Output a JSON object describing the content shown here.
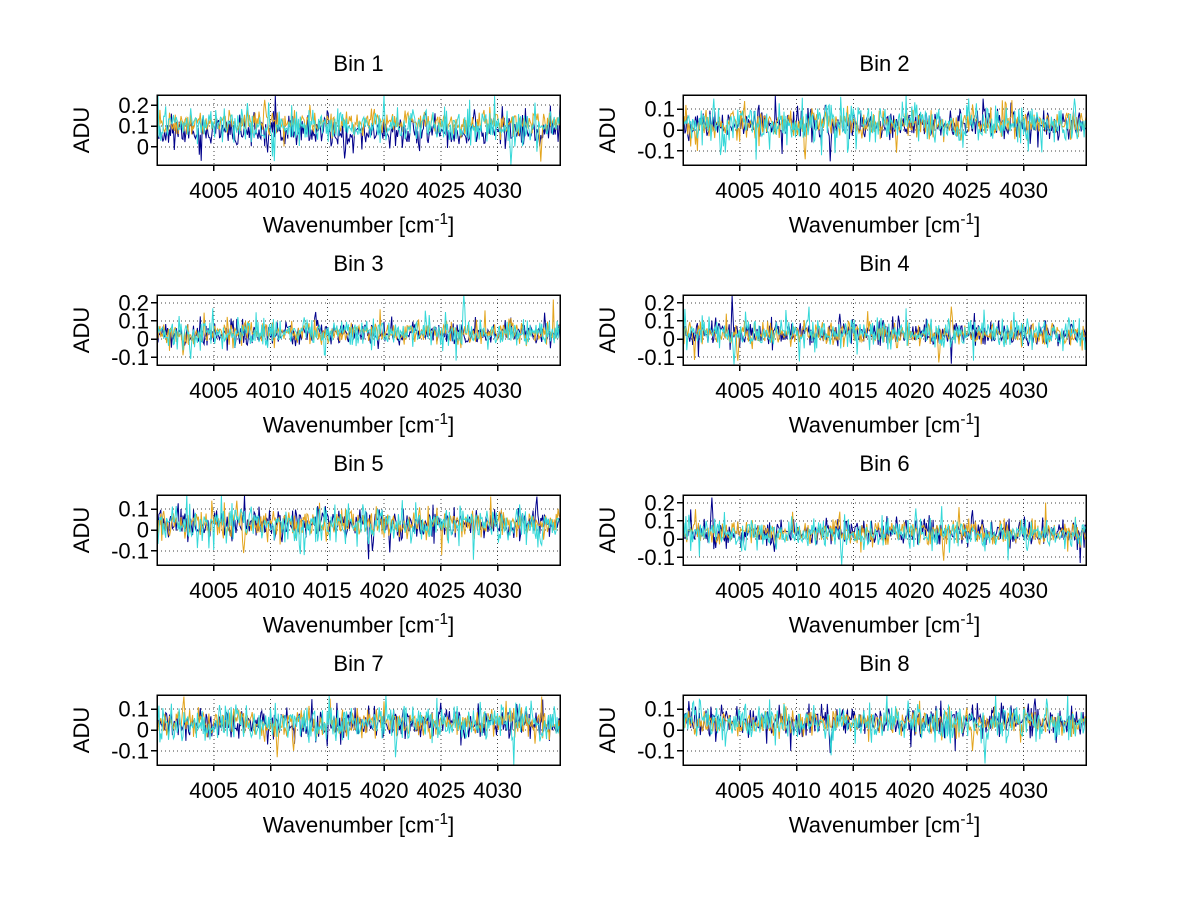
{
  "figure": {
    "background": "#ffffff",
    "rows": 4,
    "cols": 2
  },
  "labels": {
    "ylabel": "ADU",
    "xlabel_main": "Wavenumber [cm",
    "xlabel_sup": "-1",
    "xlabel_end": "]"
  },
  "axis_style": {
    "axis_color": "#000000",
    "grid_color": "#404040",
    "tick_font_px": 22,
    "grid_on": true,
    "legend": null
  },
  "chart_data": [
    {
      "type": "line",
      "title": "Bin 1",
      "ylabel": "ADU",
      "xlabel": "Wavenumber [cm-1]",
      "x_range": [
        4000,
        4035.5
      ],
      "y_range": [
        -0.086,
        0.248
      ],
      "xticks": [
        4005,
        4010,
        4015,
        4020,
        4025,
        4030
      ],
      "yticks": [
        0,
        0.1,
        0.2
      ],
      "ytick_labels": [
        "0",
        "0.1",
        "0.2"
      ],
      "n_points": 420,
      "series": [
        {
          "name": "series-dark-blue",
          "color": "#00008B",
          "mean": 0.07,
          "std": 0.036,
          "seed": 11,
          "spikes": [
            {
              "x": 4016.5,
              "y": -0.055
            },
            {
              "x": 4028,
              "y": 0.18
            }
          ]
        },
        {
          "name": "series-orange",
          "color": "#E3A51E",
          "mean": 0.115,
          "std": 0.026,
          "seed": 12,
          "spikes": [
            {
              "x": 4009.5,
              "y": 0.225
            },
            {
              "x": 4033.8,
              "y": -0.07
            },
            {
              "x": 4013.5,
              "y": 0.2
            }
          ]
        },
        {
          "name": "series-cyan",
          "color": "#35D8D8",
          "mean": 0.1,
          "std": 0.04,
          "seed": 13,
          "spikes": [
            {
              "x": 4020,
              "y": 0.26
            },
            {
              "x": 4031.2,
              "y": -0.085
            },
            {
              "x": 4008,
              "y": 0.21
            }
          ]
        }
      ]
    },
    {
      "type": "line",
      "title": "Bin 2",
      "ylabel": "ADU",
      "xlabel": "Wavenumber [cm-1]",
      "x_range": [
        4000,
        4035.5
      ],
      "y_range": [
        -0.167,
        0.167
      ],
      "xticks": [
        4005,
        4010,
        4015,
        4020,
        4025,
        4030
      ],
      "yticks": [
        -0.1,
        0,
        0.1
      ],
      "ytick_labels": [
        "-0.1",
        "0",
        "0.1"
      ],
      "n_points": 420,
      "series": [
        {
          "name": "series-dark-blue",
          "color": "#00008B",
          "mean": 0.03,
          "std": 0.034,
          "seed": 21,
          "spikes": [
            {
              "x": 4013,
              "y": -0.15
            },
            {
              "x": 4012.5,
              "y": 0.12
            }
          ]
        },
        {
          "name": "series-orange",
          "color": "#E3A51E",
          "mean": 0.03,
          "std": 0.032,
          "seed": 22,
          "spikes": [
            {
              "x": 4010.8,
              "y": -0.14
            }
          ]
        },
        {
          "name": "series-cyan",
          "color": "#35D8D8",
          "mean": 0.025,
          "std": 0.046,
          "seed": 23,
          "spikes": [
            {
              "x": 4002.7,
              "y": 0.15
            },
            {
              "x": 4003.3,
              "y": -0.12
            },
            {
              "x": 4034.5,
              "y": 0.15
            }
          ]
        }
      ]
    },
    {
      "type": "line",
      "title": "Bin 3",
      "ylabel": "ADU",
      "xlabel": "Wavenumber [cm-1]",
      "x_range": [
        4000,
        4035.5
      ],
      "y_range": [
        -0.144,
        0.244
      ],
      "xticks": [
        4005,
        4010,
        4015,
        4020,
        4025,
        4030
      ],
      "yticks": [
        -0.1,
        0,
        0.1,
        0.2
      ],
      "ytick_labels": [
        "-0.1",
        "0",
        "0.1",
        "0.2"
      ],
      "n_points": 420,
      "series": [
        {
          "name": "series-dark-blue",
          "color": "#00008B",
          "mean": 0.03,
          "std": 0.033,
          "seed": 31,
          "spikes": [
            {
              "x": 4014,
              "y": 0.15
            }
          ]
        },
        {
          "name": "series-orange",
          "color": "#E3A51E",
          "mean": 0.035,
          "std": 0.03,
          "seed": 32,
          "spikes": [
            {
              "x": 4002.3,
              "y": -0.09
            }
          ]
        },
        {
          "name": "series-cyan",
          "color": "#35D8D8",
          "mean": 0.03,
          "std": 0.04,
          "seed": 33,
          "spikes": [
            {
              "x": 4027,
              "y": 0.27
            },
            {
              "x": 4003,
              "y": -0.11
            }
          ]
        }
      ]
    },
    {
      "type": "line",
      "title": "Bin 4",
      "ylabel": "ADU",
      "xlabel": "Wavenumber [cm-1]",
      "x_range": [
        4000,
        4035.5
      ],
      "y_range": [
        -0.144,
        0.244
      ],
      "xticks": [
        4005,
        4010,
        4015,
        4020,
        4025,
        4030
      ],
      "yticks": [
        -0.1,
        0,
        0.1,
        0.2
      ],
      "ytick_labels": [
        "-0.1",
        "0",
        "0.1",
        "0.2"
      ],
      "n_points": 420,
      "series": [
        {
          "name": "series-dark-blue",
          "color": "#00008B",
          "mean": 0.03,
          "std": 0.035,
          "seed": 41,
          "spikes": [
            {
              "x": 4004.3,
              "y": 0.24
            },
            {
              "x": 4013.8,
              "y": 0.14
            },
            {
              "x": 4019,
              "y": 0.13
            }
          ]
        },
        {
          "name": "series-orange",
          "color": "#E3A51E",
          "mean": 0.03,
          "std": 0.032,
          "seed": 42,
          "spikes": [
            {
              "x": 4023.6,
              "y": 0.18
            },
            {
              "x": 4004.8,
              "y": -0.12
            },
            {
              "x": 4022.5,
              "y": -0.13
            }
          ]
        },
        {
          "name": "series-cyan",
          "color": "#35D8D8",
          "mean": 0.03,
          "std": 0.04,
          "seed": 43,
          "spikes": [
            {
              "x": 4004.5,
              "y": -0.14
            },
            {
              "x": 4034,
              "y": 0.12
            }
          ]
        }
      ]
    },
    {
      "type": "line",
      "title": "Bin 5",
      "ylabel": "ADU",
      "xlabel": "Wavenumber [cm-1]",
      "x_range": [
        4000,
        4035.5
      ],
      "y_range": [
        -0.167,
        0.167
      ],
      "xticks": [
        4005,
        4010,
        4015,
        4020,
        4025,
        4030
      ],
      "yticks": [
        -0.1,
        0,
        0.1
      ],
      "ytick_labels": [
        "-0.1",
        "0",
        "0.1"
      ],
      "n_points": 420,
      "series": [
        {
          "name": "series-dark-blue",
          "color": "#00008B",
          "mean": 0.03,
          "std": 0.034,
          "seed": 51,
          "spikes": [
            {
              "x": 4033.5,
              "y": 0.16
            },
            {
              "x": 4019,
              "y": -0.1
            }
          ]
        },
        {
          "name": "series-orange",
          "color": "#E3A51E",
          "mean": 0.03,
          "std": 0.033,
          "seed": 52,
          "spikes": [
            {
              "x": 4007,
              "y": 0.14
            },
            {
              "x": 4007.6,
              "y": -0.11
            }
          ]
        },
        {
          "name": "series-cyan",
          "color": "#35D8D8",
          "mean": 0.025,
          "std": 0.042,
          "seed": 53,
          "spikes": [
            {
              "x": 4013,
              "y": -0.12
            }
          ]
        }
      ]
    },
    {
      "type": "line",
      "title": "Bin 6",
      "ylabel": "ADU",
      "xlabel": "Wavenumber [cm-1]",
      "x_range": [
        4000,
        4035.5
      ],
      "y_range": [
        -0.144,
        0.244
      ],
      "xticks": [
        4005,
        4010,
        4015,
        4020,
        4025,
        4030
      ],
      "yticks": [
        -0.1,
        0,
        0.1,
        0.2
      ],
      "ytick_labels": [
        "-0.1",
        "0",
        "0.1",
        "0.2"
      ],
      "n_points": 420,
      "series": [
        {
          "name": "series-dark-blue",
          "color": "#00008B",
          "mean": 0.035,
          "std": 0.034,
          "seed": 61,
          "spikes": [
            {
              "x": 4002.5,
              "y": 0.23
            },
            {
              "x": 4025.5,
              "y": 0.16
            }
          ]
        },
        {
          "name": "series-orange",
          "color": "#E3A51E",
          "mean": 0.035,
          "std": 0.032,
          "seed": 62,
          "spikes": [
            {
              "x": 4023,
              "y": -0.12
            }
          ]
        },
        {
          "name": "series-cyan",
          "color": "#35D8D8",
          "mean": 0.03,
          "std": 0.04,
          "seed": 63,
          "spikes": [
            {
              "x": 4020.5,
              "y": 0.17
            },
            {
              "x": 4014,
              "y": -0.15
            }
          ]
        }
      ]
    },
    {
      "type": "line",
      "title": "Bin 7",
      "ylabel": "ADU",
      "xlabel": "Wavenumber [cm-1]",
      "x_range": [
        4000,
        4035.5
      ],
      "y_range": [
        -0.167,
        0.167
      ],
      "xticks": [
        4005,
        4010,
        4015,
        4020,
        4025,
        4030
      ],
      "yticks": [
        -0.1,
        0,
        0.1
      ],
      "ytick_labels": [
        "-0.1",
        "0",
        "0.1"
      ],
      "n_points": 420,
      "series": [
        {
          "name": "series-dark-blue",
          "color": "#00008B",
          "mean": 0.03,
          "std": 0.034,
          "seed": 71,
          "spikes": [
            {
              "x": 4025,
              "y": 0.13
            }
          ]
        },
        {
          "name": "series-orange",
          "color": "#E3A51E",
          "mean": 0.035,
          "std": 0.034,
          "seed": 72,
          "spikes": [
            {
              "x": 4002.4,
              "y": 0.16
            },
            {
              "x": 4010.6,
              "y": -0.13
            },
            {
              "x": 4012,
              "y": -0.1
            }
          ]
        },
        {
          "name": "series-cyan",
          "color": "#35D8D8",
          "mean": 0.03,
          "std": 0.044,
          "seed": 73,
          "spikes": [
            {
              "x": 4021,
              "y": -0.13
            },
            {
              "x": 4033,
              "y": 0.14
            }
          ]
        }
      ]
    },
    {
      "type": "line",
      "title": "Bin 8",
      "ylabel": "ADU",
      "xlabel": "Wavenumber [cm-1]",
      "x_range": [
        4000,
        4035.5
      ],
      "y_range": [
        -0.167,
        0.167
      ],
      "xticks": [
        4005,
        4010,
        4015,
        4020,
        4025,
        4030
      ],
      "yticks": [
        -0.1,
        0,
        0.1
      ],
      "ytick_labels": [
        "-0.1",
        "0",
        "0.1"
      ],
      "n_points": 420,
      "series": [
        {
          "name": "series-dark-blue",
          "color": "#00008B",
          "mean": 0.04,
          "std": 0.036,
          "seed": 81,
          "spikes": [
            {
              "x": 4031,
              "y": 0.15
            },
            {
              "x": 4013,
              "y": -0.11
            }
          ]
        },
        {
          "name": "series-orange",
          "color": "#E3A51E",
          "mean": 0.035,
          "std": 0.03,
          "seed": 82,
          "spikes": [
            {
              "x": 4025.5,
              "y": -0.1
            }
          ]
        },
        {
          "name": "series-cyan",
          "color": "#35D8D8",
          "mean": 0.035,
          "std": 0.044,
          "seed": 83,
          "spikes": [
            {
              "x": 4026.6,
              "y": -0.16
            },
            {
              "x": 4032,
              "y": 0.15
            },
            {
              "x": 4001.5,
              "y": 0.14
            }
          ]
        }
      ]
    }
  ]
}
